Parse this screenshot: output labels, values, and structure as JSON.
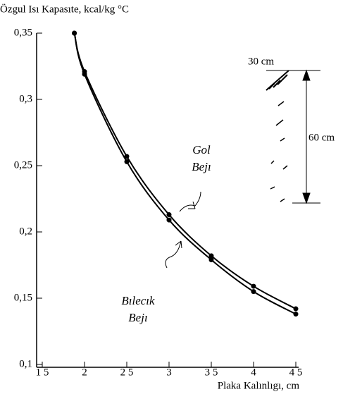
{
  "chart_data": {
    "type": "line",
    "ylabel": "Özgul Isı Kapasıte, kcal/kg °C",
    "xlabel": "Plaka Kalınlıgı, cm",
    "x": [
      1.88,
      2,
      2.5,
      3,
      3.5,
      4,
      4.5
    ],
    "series": [
      {
        "name": "Gol Bejı",
        "color": "#000000",
        "values": [
          0.35,
          0.321,
          0.257,
          0.213,
          0.182,
          0.159,
          0.142
        ]
      },
      {
        "name": "Bılecık Bejı",
        "color": "#000000",
        "values": [
          0.35,
          0.319,
          0.253,
          0.209,
          0.179,
          0.155,
          0.138
        ]
      }
    ],
    "xlim": [
      1.5,
      4.5
    ],
    "ylim": [
      0.1,
      0.35
    ],
    "xticks": [
      {
        "value": 1.5,
        "label": "1 5"
      },
      2,
      {
        "value": 2.5,
        "label": "2 5"
      },
      3,
      {
        "value": 3.5,
        "label": "3 5"
      },
      4,
      {
        "value": 4.5,
        "label": "4 5"
      }
    ],
    "yticks": [
      {
        "value": 0.1,
        "label": "0,1"
      },
      {
        "value": 0.15,
        "label": "0,15"
      },
      {
        "value": 0.2,
        "label": "0,2"
      },
      {
        "value": 0.25,
        "label": "0,25"
      },
      {
        "value": 0.3,
        "label": "0,3"
      },
      {
        "value": 0.35,
        "label": "0,35"
      }
    ],
    "annotations": [
      "30 cm",
      "60 cm"
    ],
    "grid": false
  }
}
